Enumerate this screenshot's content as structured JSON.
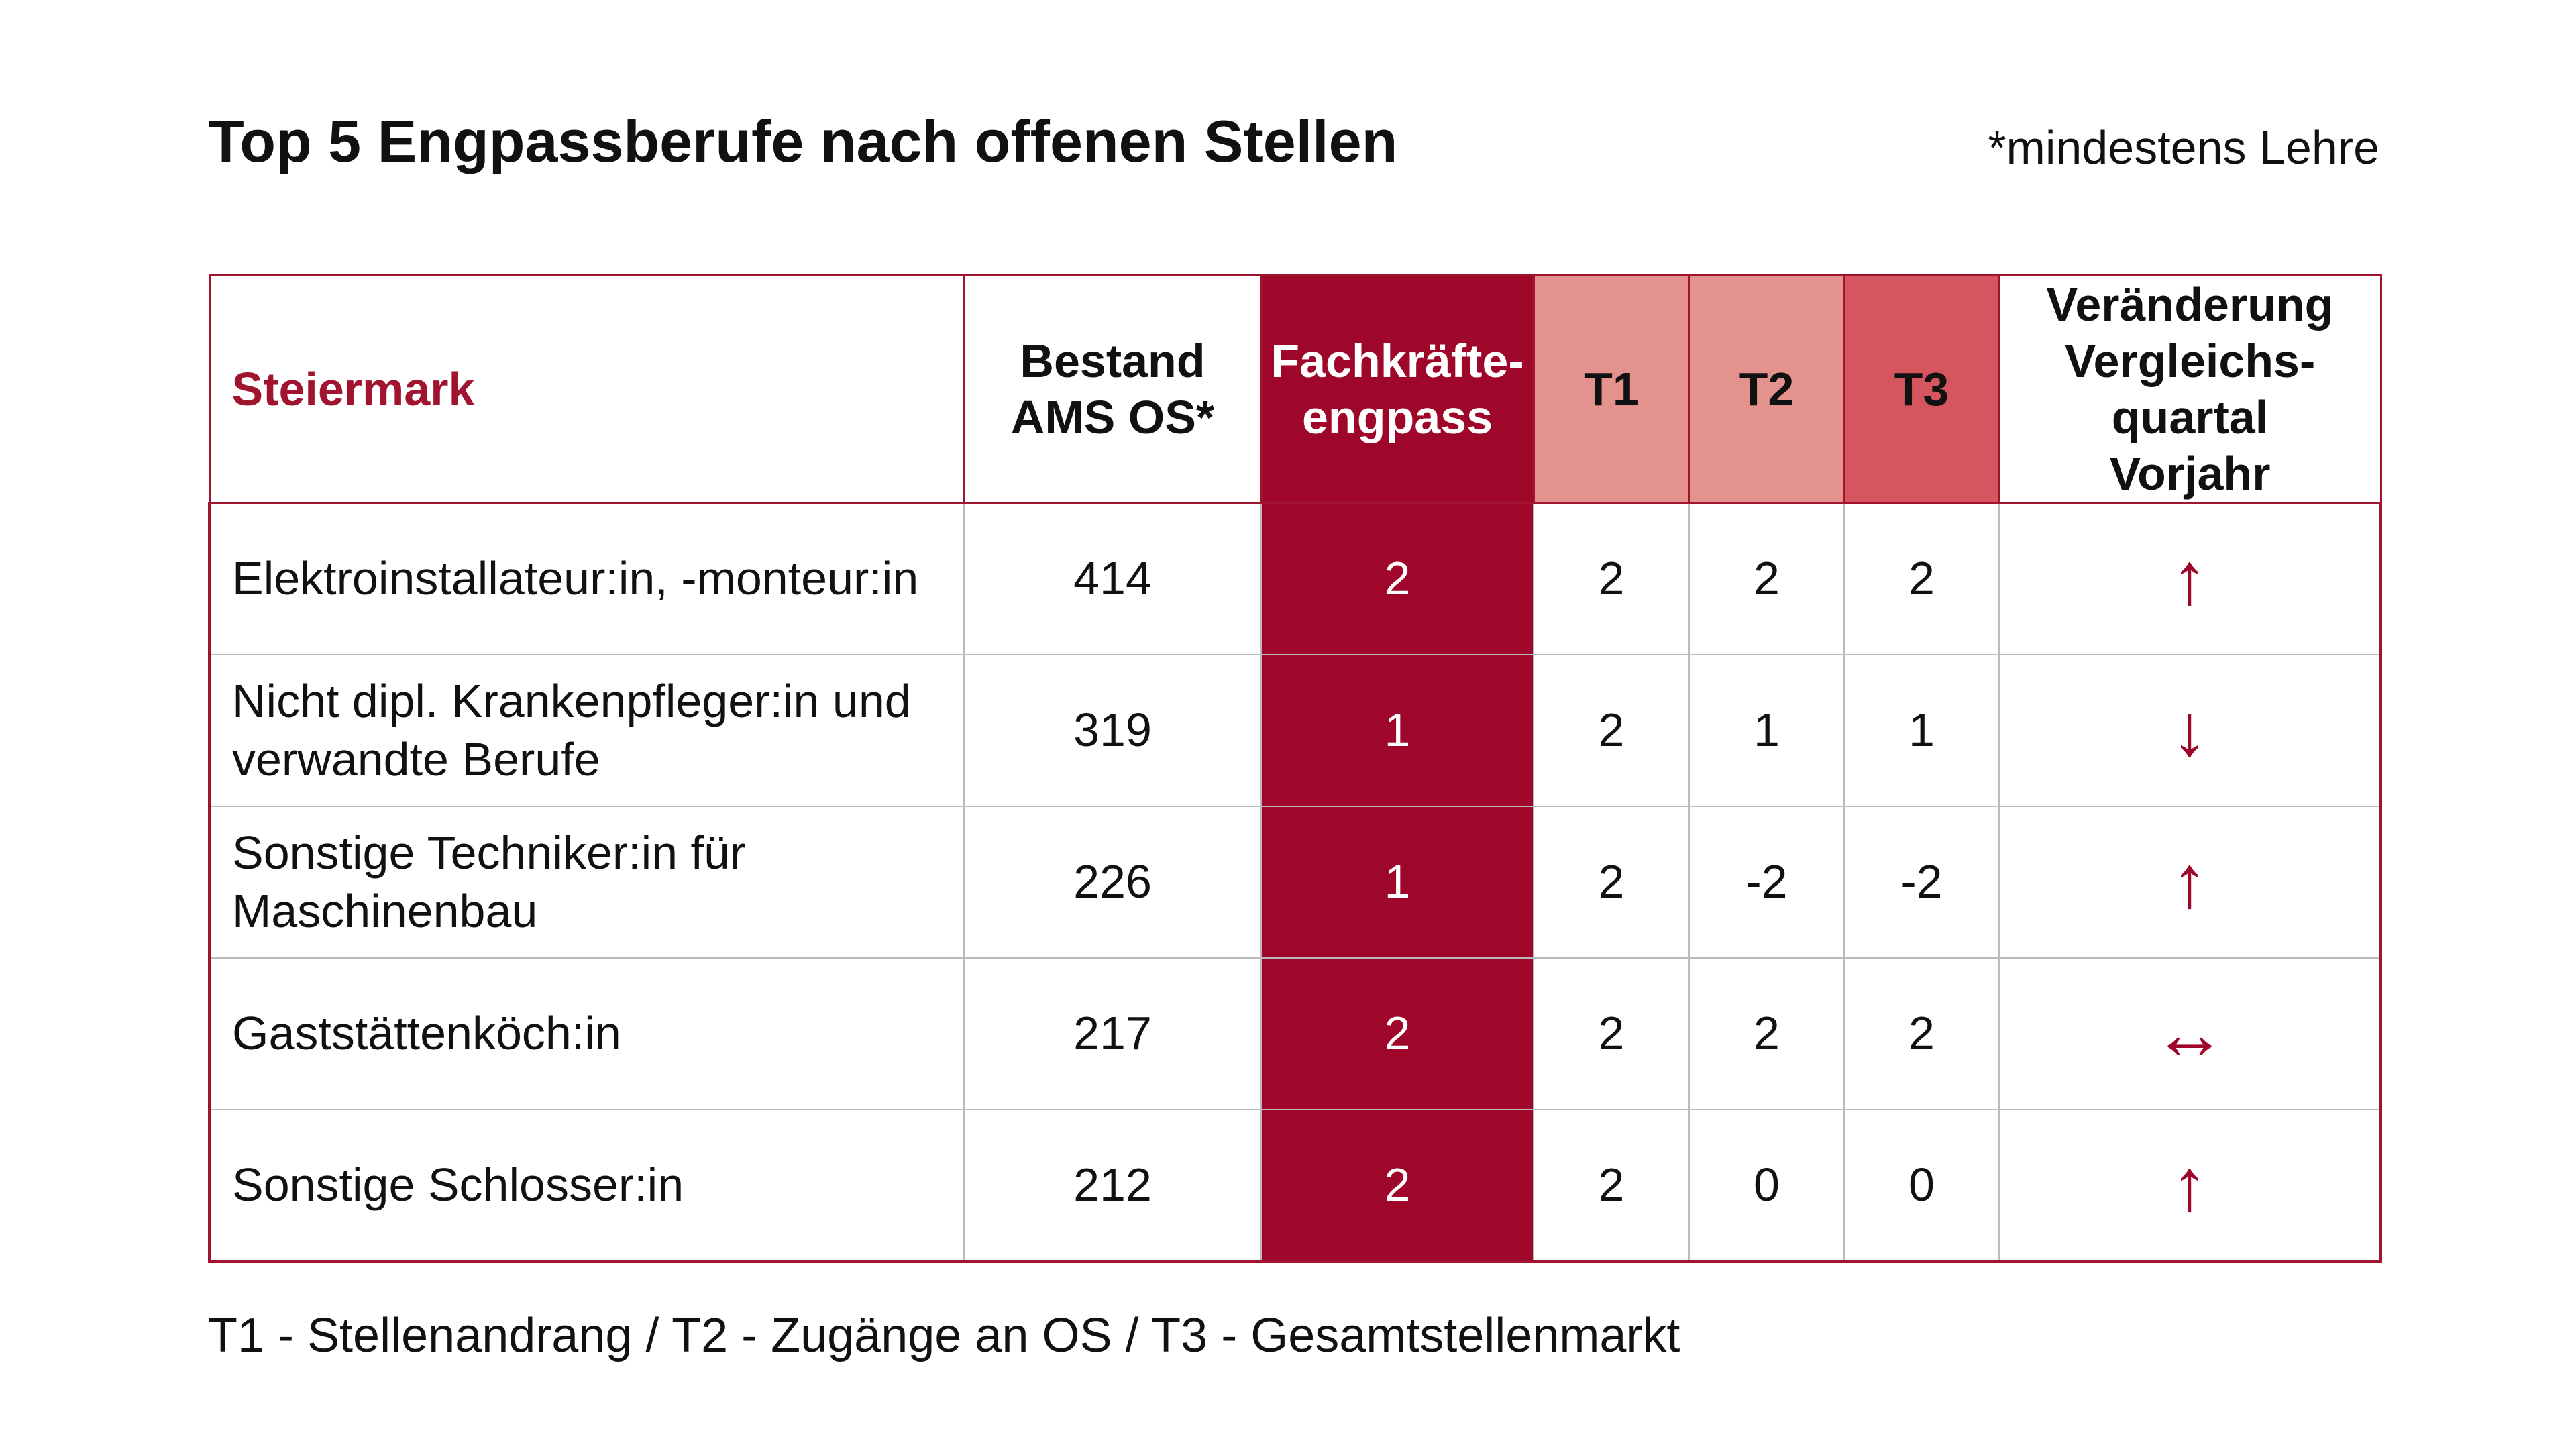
{
  "title": "Top 5 Engpassberufe nach offenen Stellen",
  "note": "*mindestens Lehre",
  "colors": {
    "accent": "#9e0729",
    "t1_t2_header": "#e4928e",
    "t3_header": "#d6565f"
  },
  "table": {
    "headers": {
      "region": "Steiermark",
      "bestand": "Bestand AMS OS*",
      "fachkraefte": "Fachkräfte-engpass",
      "t1": "T1",
      "t2": "T2",
      "t3": "T3",
      "veraenderung": "Veränderung Vergleichs-quartal Vorjahr"
    },
    "rows": [
      {
        "name": "Elektroinstallateur:in, -monteur:in",
        "bestand": "414",
        "fk": "2",
        "t1": "2",
        "t2": "2",
        "t3": "2",
        "trend": "↑",
        "trend_icon": "arrow-up-icon"
      },
      {
        "name": "Nicht dipl. Krankenpfleger:in und verwandte Berufe",
        "bestand": "319",
        "fk": "1",
        "t1": "2",
        "t2": "1",
        "t3": "1",
        "trend": "↓",
        "trend_icon": "arrow-down-icon"
      },
      {
        "name": "Sonstige Techniker:in für Maschinenbau",
        "bestand": "226",
        "fk": "1",
        "t1": "2",
        "t2": "-2",
        "t3": "-2",
        "trend": "↑",
        "trend_icon": "arrow-up-icon"
      },
      {
        "name": "Gaststättenköch:in",
        "bestand": "217",
        "fk": "2",
        "t1": "2",
        "t2": "2",
        "t3": "2",
        "trend": "↔",
        "trend_icon": "arrow-left-right-icon"
      },
      {
        "name": "Sonstige Schlosser:in",
        "bestand": "212",
        "fk": "2",
        "t1": "2",
        "t2": "0",
        "t3": "0",
        "trend": "↑",
        "trend_icon": "arrow-up-icon"
      }
    ]
  },
  "footnote": "T1 - Stellenandrang / T2 - Zugänge an OS / T3 - Gesamtstellenmarkt"
}
